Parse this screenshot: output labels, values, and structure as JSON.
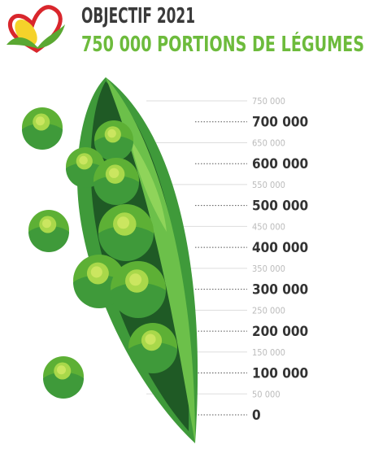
{
  "header": {
    "title": "OBJECTIF 2021",
    "subtitle": "750 000 PORTIONS DE LÉGUMES"
  },
  "scale": {
    "ticks": [
      "750 000",
      "700 000",
      "650 000",
      "600 000",
      "550 000",
      "500 000",
      "450 000",
      "400 000",
      "350 000",
      "300 000",
      "250 000",
      "200 000",
      "150 000",
      "100 000",
      "50 000",
      "0"
    ]
  }
}
